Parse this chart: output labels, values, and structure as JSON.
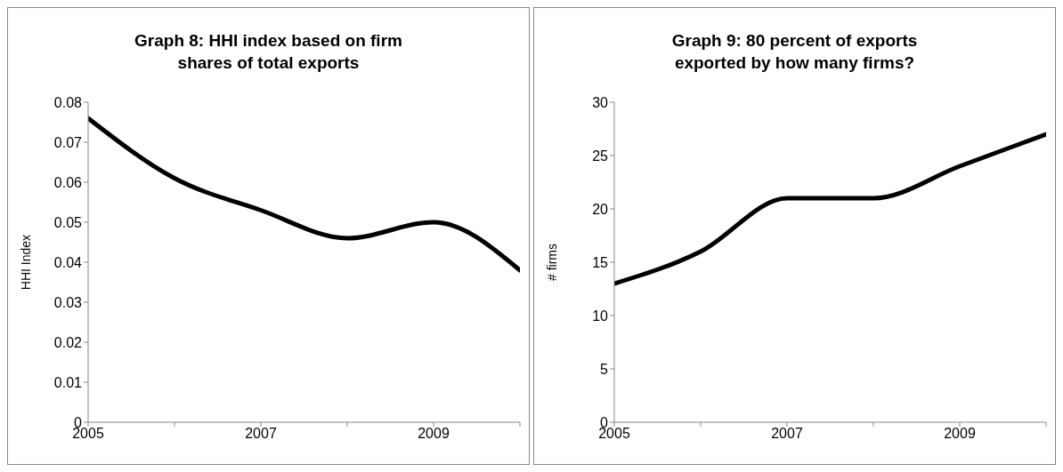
{
  "chart_data": [
    {
      "type": "line",
      "title": "Graph 8: HHI index based on firm shares of total exports",
      "ylabel": "HHI Index",
      "x": [
        2005,
        2006,
        2007,
        2008,
        2009,
        2010
      ],
      "series": [
        {
          "color": "#000000",
          "values": [
            0.076,
            0.061,
            0.053,
            0.046,
            0.05,
            0.038
          ]
        }
      ],
      "xlim": [
        2005,
        2010
      ],
      "xticks": [
        2005,
        {
          "value": 2006,
          "label": null
        },
        2007,
        {
          "value": 2008,
          "label": null
        },
        2009,
        {
          "value": 2010,
          "label": null
        }
      ],
      "ylim": [
        0,
        0.08
      ],
      "yticks": [
        0,
        0.01,
        0.02,
        0.03,
        0.04,
        0.05,
        0.06,
        0.07,
        0.08
      ],
      "grid": false,
      "legend": false,
      "marker": "none",
      "line_style": "solid"
    },
    {
      "type": "line",
      "title": "Graph 9: 80 percent of exports exported by how many firms?",
      "ylabel": "# firms",
      "x": [
        2005,
        2006,
        2007,
        2008,
        2009,
        2010
      ],
      "series": [
        {
          "color": "#000000",
          "values": [
            13,
            16,
            21,
            21,
            24,
            27
          ]
        }
      ],
      "xlim": [
        2005,
        2010
      ],
      "xticks": [
        2005,
        {
          "value": 2006,
          "label": null
        },
        2007,
        {
          "value": 2008,
          "label": null
        },
        2009,
        {
          "value": 2010,
          "label": null
        }
      ],
      "ylim": [
        0,
        30
      ],
      "yticks": [
        0,
        5,
        10,
        15,
        20,
        25,
        30
      ],
      "grid": false,
      "legend": false,
      "marker": "none",
      "line_style": "solid"
    }
  ]
}
